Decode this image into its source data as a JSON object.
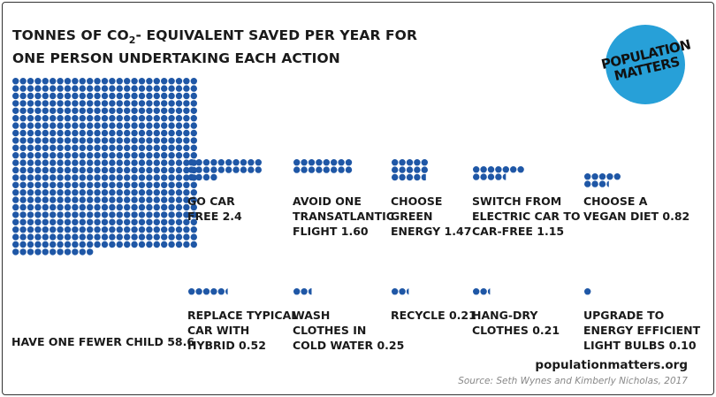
{
  "title_line1_prefix": "TONNES OF CO",
  "title_line1_sub": "2",
  "title_line1_suffix": "- EQUIVALENT SAVED PER YEAR FOR",
  "title_line2": "ONE PERSON UNDERTAKING EACH ACTION",
  "logo_line1": "POPULATION",
  "logo_line2": "MATTERS",
  "website": "populationmatters.org",
  "source": "Source: Seth Wynes and Kimberly Nicholas, 2017",
  "colors": {
    "dot": "#1f57a6",
    "logo": "#27a0d8",
    "text": "#1a1a1a",
    "source": "#888888"
  },
  "chart_data": {
    "type": "dot-grid (unit chart)",
    "unit": "tonnes CO2-equivalent per year",
    "actions": [
      {
        "label": "HAVE ONE FEWER CHILD",
        "value": 58.6,
        "value_text": "58.6"
      },
      {
        "label": "GO CAR\nFREE",
        "value": 2.4,
        "value_text": "2.4"
      },
      {
        "label": "AVOID ONE\nTRANSATLANTIC\nFLIGHT",
        "value": 1.6,
        "value_text": "1.60"
      },
      {
        "label": "CHOOSE\nGREEN\nENERGY",
        "value": 1.47,
        "value_text": "1.47"
      },
      {
        "label": "SWITCH FROM\nELECTRIC CAR TO\nCAR-FREE",
        "value": 1.15,
        "value_text": "1.15"
      },
      {
        "label": "CHOOSE A\nVEGAN DIET",
        "value": 0.82,
        "value_text": "0.82"
      },
      {
        "label": "REPLACE TYPICAL\nCAR WITH\nHYBRID",
        "value": 0.52,
        "value_text": "0.52"
      },
      {
        "label": "WASH\nCLOTHES IN\nCOLD WATER",
        "value": 0.25,
        "value_text": "0.25"
      },
      {
        "label": "RECYCLE",
        "value": 0.21,
        "value_text": "0.21"
      },
      {
        "label": "HANG-DRY\nCLOTHES",
        "value": 0.21,
        "value_text": "0.21"
      },
      {
        "label": "UPGRADE TO\nENERGY EFFICIENT\nLIGHT BULBS",
        "value": 0.1,
        "value_text": "0.10"
      }
    ]
  }
}
